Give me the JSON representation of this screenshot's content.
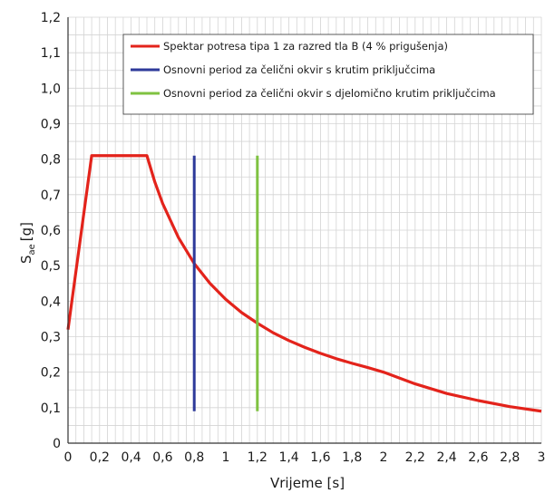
{
  "chart_data": {
    "type": "line",
    "title": "",
    "xlabel": "Vrijeme [s]",
    "ylabel_main": "S",
    "ylabel_sub": "ae",
    "ylabel_unit": "[g]",
    "xlim": [
      0,
      3
    ],
    "ylim": [
      0,
      1.2
    ],
    "x_ticks": [
      0,
      0.2,
      0.4,
      0.6,
      0.8,
      1,
      1.2,
      1.4,
      1.6,
      1.8,
      2,
      2.2,
      2.4,
      2.6,
      2.8,
      3
    ],
    "x_tick_labels": [
      "0",
      "0,2",
      "0,4",
      "0,6",
      "0,8",
      "1",
      "1,2",
      "1,4",
      "1,6",
      "1,8",
      "2",
      "2,2",
      "2,4",
      "2,6",
      "2,8",
      "3"
    ],
    "y_ticks": [
      0,
      0.1,
      0.2,
      0.3,
      0.4,
      0.5,
      0.6,
      0.7,
      0.8,
      0.9,
      1.0,
      1.1,
      1.2
    ],
    "y_tick_labels": [
      "0",
      "0,1",
      "0,2",
      "0,3",
      "0,4",
      "0,5",
      "0,6",
      "0,7",
      "0,8",
      "0,9",
      "1,0",
      "1,1",
      "1,2"
    ],
    "grid": true,
    "legend_position": "top-right",
    "series": [
      {
        "name": "Spektar potresa tipa 1 za razred tla B (4 % prigušenja)",
        "color": "#e3231b",
        "x": [
          0,
          0.15,
          0.5,
          0.55,
          0.6,
          0.7,
          0.8,
          0.9,
          1.0,
          1.1,
          1.2,
          1.3,
          1.4,
          1.5,
          1.6,
          1.7,
          1.8,
          1.9,
          2.0,
          2.2,
          2.4,
          2.6,
          2.8,
          3.0
        ],
        "y": [
          0.32,
          0.81,
          0.81,
          0.736,
          0.675,
          0.579,
          0.506,
          0.45,
          0.405,
          0.368,
          0.338,
          0.311,
          0.289,
          0.27,
          0.253,
          0.238,
          0.225,
          0.213,
          0.2,
          0.167,
          0.14,
          0.12,
          0.103,
          0.09
        ]
      },
      {
        "name": "Osnovni period za čelični okvir s krutim priključcima",
        "color": "#2e3a9a",
        "x": [
          0.8,
          0.8
        ],
        "y": [
          0.09,
          0.81
        ]
      },
      {
        "name": "Osnovni period za čelični okvir s djelomično krutim priključcima",
        "color": "#7fc241",
        "x": [
          1.2,
          1.2
        ],
        "y": [
          0.09,
          0.81
        ]
      }
    ]
  }
}
